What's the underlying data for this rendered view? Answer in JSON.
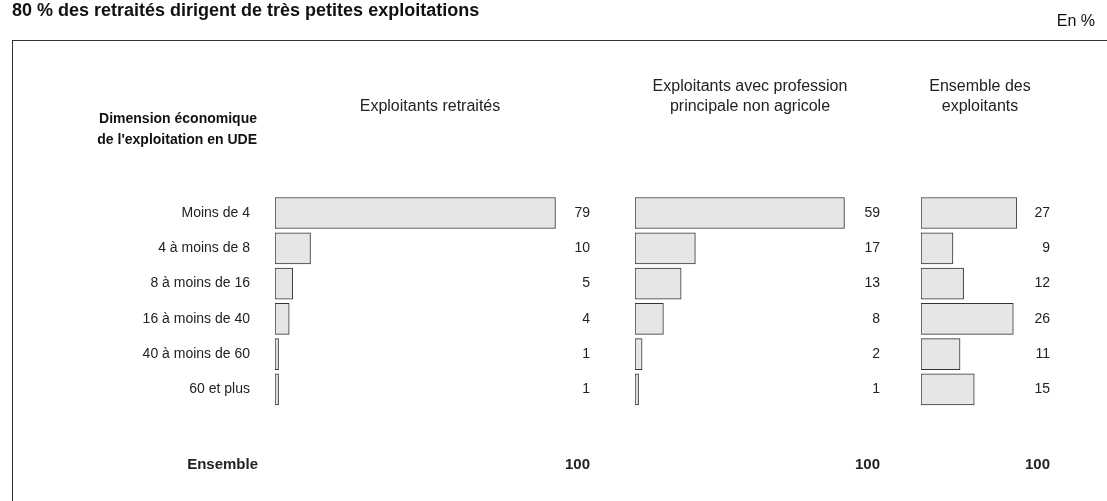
{
  "chart_data": [
    {
      "type": "other",
      "title": "80 % des retraités dirigent de très petites exploitations",
      "annotations": [
        "En %"
      ]
    },
    {
      "type": "bar",
      "orientation": "horizontal",
      "title": "Exploitants retraités",
      "ylabel": "Dimension économique de l'exploitation en UDE",
      "categories": [
        "Moins de 4",
        "4 à moins de 8",
        "8 à moins de 16",
        "16 à moins de 40",
        "40 à moins de 60",
        "60 et plus"
      ],
      "values": [
        79,
        10,
        5,
        4,
        1,
        1
      ],
      "color": "#e6e6e6",
      "data_labels": true,
      "annotations": [
        "Ensemble",
        "100"
      ],
      "tick_labels": "y"
    },
    {
      "type": "bar",
      "orientation": "horizontal",
      "title": "Exploitants avec profession principale non agricole",
      "categories": [
        null,
        null,
        null,
        null,
        null,
        null
      ],
      "values": [
        59,
        17,
        13,
        8,
        2,
        1
      ],
      "color": "#e6e6e6",
      "data_labels": true,
      "annotations": [
        "100"
      ]
    },
    {
      "type": "bar",
      "orientation": "horizontal",
      "title": "Ensemble des exploitants",
      "categories": [
        null,
        null,
        null,
        null,
        null,
        null
      ],
      "values": [
        27,
        9,
        12,
        26,
        11,
        15
      ],
      "color": "#e6e6e6",
      "data_labels": true,
      "annotations": [
        "100"
      ]
    }
  ]
}
